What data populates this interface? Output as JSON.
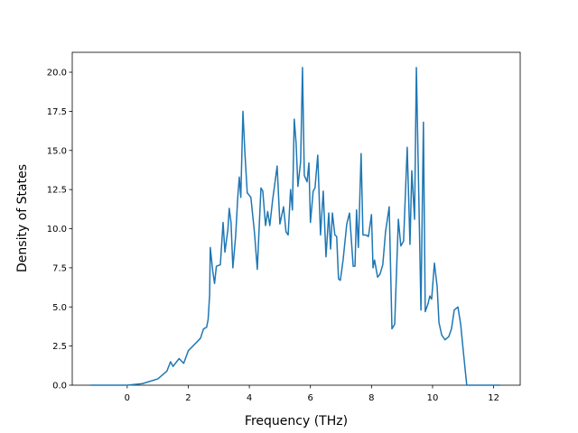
{
  "chart_data": {
    "type": "line",
    "x_label": "Frequency (THz)",
    "y_label": "Density of States",
    "x": [
      -1.2,
      0,
      0.5,
      1.0,
      1.3,
      1.42,
      1.5,
      1.7,
      1.85,
      2.0,
      2.2,
      2.4,
      2.5,
      2.6,
      2.65,
      2.7,
      2.72,
      2.8,
      2.86,
      2.92,
      3.05,
      3.14,
      3.2,
      3.3,
      3.34,
      3.4,
      3.46,
      3.55,
      3.62,
      3.67,
      3.72,
      3.79,
      3.85,
      3.93,
      4.05,
      4.17,
      4.26,
      4.38,
      4.44,
      4.53,
      4.6,
      4.67,
      4.76,
      4.91,
      5.0,
      5.12,
      5.2,
      5.27,
      5.35,
      5.41,
      5.47,
      5.53,
      5.59,
      5.68,
      5.74,
      5.8,
      5.89,
      5.95,
      6.0,
      6.09,
      6.15,
      6.24,
      6.33,
      6.42,
      6.51,
      6.6,
      6.66,
      6.72,
      6.8,
      6.86,
      6.92,
      6.98,
      7.07,
      7.19,
      7.28,
      7.4,
      7.46,
      7.51,
      7.57,
      7.66,
      7.72,
      7.81,
      7.9,
      8.0,
      8.05,
      8.1,
      8.2,
      8.28,
      8.37,
      8.46,
      8.58,
      8.67,
      8.76,
      8.88,
      8.96,
      9.05,
      9.17,
      9.26,
      9.32,
      9.41,
      9.47,
      9.55,
      9.62,
      9.7,
      9.76,
      9.85,
      9.91,
      9.97,
      10.06,
      10.15,
      10.21,
      10.3,
      10.41,
      10.53,
      10.62,
      10.71,
      10.83,
      10.92,
      11.0,
      11.12,
      12.2
    ],
    "series": [
      {
        "color": "#1f77b4",
        "values": [
          0,
          0,
          0.1,
          0.4,
          0.9,
          1.5,
          1.2,
          1.7,
          1.4,
          2.2,
          2.6,
          3.0,
          3.6,
          3.7,
          4.2,
          5.8,
          8.8,
          7.3,
          6.5,
          7.6,
          7.7,
          10.4,
          8.5,
          10.0,
          11.3,
          10.4,
          7.5,
          9.5,
          12.0,
          13.3,
          12.0,
          17.5,
          15.0,
          12.3,
          12.0,
          9.7,
          7.4,
          12.6,
          12.4,
          10.2,
          11.1,
          10.2,
          11.8,
          14.0,
          10.3,
          11.4,
          9.8,
          9.6,
          12.5,
          11.2,
          17.0,
          15.5,
          12.7,
          14.3,
          20.3,
          13.4,
          13.0,
          14.2,
          10.4,
          12.4,
          12.6,
          14.7,
          9.6,
          12.4,
          8.2,
          11.0,
          8.7,
          11.0,
          9.6,
          9.5,
          6.8,
          6.7,
          8.0,
          10.3,
          11.0,
          7.6,
          7.6,
          11.2,
          8.8,
          14.8,
          9.6,
          9.6,
          9.5,
          10.9,
          7.5,
          8.0,
          6.9,
          7.1,
          7.7,
          9.8,
          11.4,
          3.6,
          3.9,
          10.6,
          8.9,
          9.2,
          15.2,
          9.0,
          13.7,
          10.6,
          20.3,
          12.0,
          4.8,
          16.8,
          4.7,
          5.2,
          5.7,
          5.5,
          7.8,
          6.3,
          4.0,
          3.2,
          2.9,
          3.1,
          3.6,
          4.8,
          5.0,
          3.9,
          2.3,
          0,
          0
        ]
      }
    ],
    "xlim": [
      -1.8,
      12.87
    ],
    "ylim": [
      0,
      21.27
    ],
    "xticks": [
      0,
      2,
      4,
      6,
      8,
      10,
      12
    ],
    "yticks": [
      {
        "value": 0,
        "label": "0.0"
      },
      {
        "value": 2.5,
        "label": "2.5"
      },
      {
        "value": 5,
        "label": "5.0"
      },
      {
        "value": 7.5,
        "label": "7.5"
      },
      {
        "value": 10,
        "label": "10.0"
      },
      {
        "value": 12.5,
        "label": "12.5"
      },
      {
        "value": 15,
        "label": "15.0"
      },
      {
        "value": 17.5,
        "label": "17.5"
      },
      {
        "value": 20,
        "label": "20.0"
      }
    ]
  }
}
